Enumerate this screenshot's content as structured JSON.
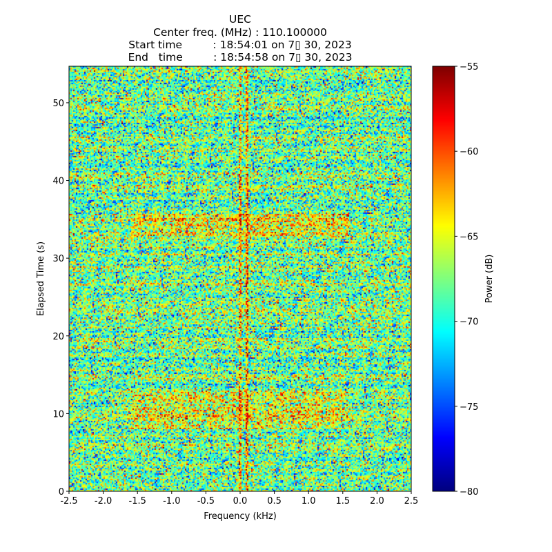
{
  "chart_data": {
    "type": "heatmap",
    "title_lines": [
      "UEC",
      "Center freq. (MHz) : 110.100000",
      "Start time         : 18:54:01 on 7月 30, 2023",
      "End   time         : 18:54:58 on 7月 30, 2023"
    ],
    "title_display": [
      "UEC",
      "Center freq. (MHz) : 110.100000",
      "Start time         : 18:54:01 on 7▯ 30, 2023",
      "End   time         : 18:54:58 on 7▯ 30, 2023"
    ],
    "xlabel": "Frequency (kHz)",
    "ylabel": "Elapsed Time (s)",
    "xlim": [
      -2.5,
      2.5
    ],
    "ylim": [
      0,
      54.7
    ],
    "xticks": [
      "-2.5",
      "-2.0",
      "-1.5",
      "-1.0",
      "-0.5",
      "0.0",
      "0.5",
      "1.0",
      "1.5",
      "2.0",
      "2.5"
    ],
    "yticks": [
      "0",
      "10",
      "20",
      "30",
      "40",
      "50"
    ],
    "colorbar": {
      "label": "Power (dB)",
      "range": [
        -80,
        -55
      ],
      "ticks": [
        "−80",
        "−75",
        "−70",
        "−65",
        "−60",
        "−55"
      ],
      "colormap": "jet"
    },
    "noise_floor_db": -68,
    "features": [
      {
        "kind": "vertical_line",
        "freq_khz": 0.0,
        "power_db": -60
      },
      {
        "kind": "vertical_line",
        "freq_khz": 0.1,
        "power_db": -59
      },
      {
        "kind": "horizontal_band",
        "time_s": [
          33,
          36
        ],
        "power_db": -62
      },
      {
        "kind": "horizontal_band",
        "time_s": [
          8,
          13
        ],
        "power_db": -63
      }
    ]
  }
}
